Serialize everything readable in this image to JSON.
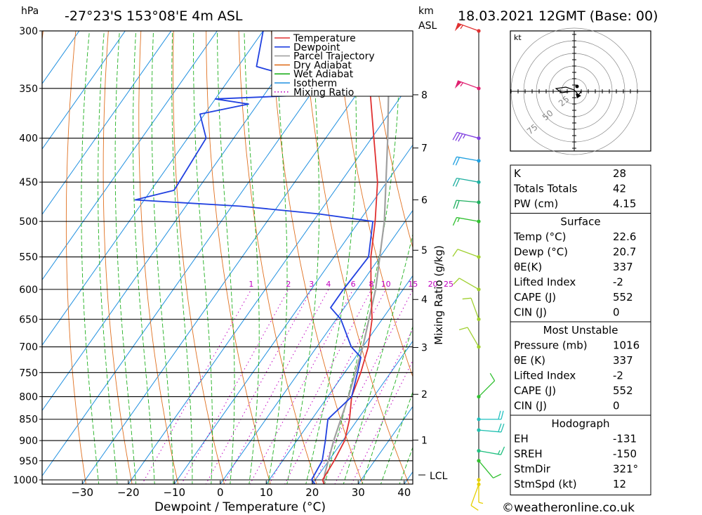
{
  "header": {
    "location": "-27°23'S  153°08'E  4m  ASL",
    "datetime": "18.03.2021  12GMT  (Base: 00)",
    "hpa_unit": "hPa",
    "km_label": "km",
    "asl_label": "ASL"
  },
  "legend": {
    "items": [
      {
        "label": "Temperature",
        "color": "#e03030",
        "style": "solid"
      },
      {
        "label": "Dewpoint",
        "color": "#2040e0",
        "style": "solid"
      },
      {
        "label": "Parcel Trajectory",
        "color": "#a0a0a0",
        "style": "solid"
      },
      {
        "label": "Dry Adiabat",
        "color": "#e07020",
        "style": "solid"
      },
      {
        "label": "Wet Adiabat",
        "color": "#20b020",
        "style": "solid"
      },
      {
        "label": "Isotherm",
        "color": "#2090e0",
        "style": "solid"
      },
      {
        "label": "Mixing Ratio",
        "color": "#c000c0",
        "style": "dotted"
      }
    ]
  },
  "chart_data": {
    "type": "skew-t",
    "x_label": "Dewpoint / Temperature (°C)",
    "x_ticks": [
      -30,
      -20,
      -10,
      0,
      10,
      20,
      30,
      40
    ],
    "pressure_ticks": [
      300,
      350,
      400,
      450,
      500,
      550,
      600,
      650,
      700,
      750,
      800,
      850,
      900,
      950,
      1000
    ],
    "height_km_ticks": [
      1,
      2,
      3,
      4,
      5,
      6,
      7,
      8
    ],
    "height_axis_label": "Mixing Ratio (g/kg)",
    "lcl_label": "LCL",
    "mixing_ratio_labels": [
      "1",
      "2",
      "3",
      "4",
      "6",
      "8",
      "10",
      "15",
      "20",
      "25"
    ],
    "temperature": [
      {
        "p": 1012,
        "t": 22.6
      },
      {
        "p": 1000,
        "t": 21.6
      },
      {
        "p": 950,
        "t": 21.2
      },
      {
        "p": 900,
        "t": 20.4
      },
      {
        "p": 850,
        "t": 18.2
      },
      {
        "p": 800,
        "t": 15.2
      },
      {
        "p": 750,
        "t": 13.5
      },
      {
        "p": 700,
        "t": 11.2
      },
      {
        "p": 650,
        "t": 7.8
      },
      {
        "p": 600,
        "t": 3.0
      },
      {
        "p": 550,
        "t": -2.0
      },
      {
        "p": 500,
        "t": -6.5
      },
      {
        "p": 450,
        "t": -12.0
      },
      {
        "p": 400,
        "t": -19.5
      },
      {
        "p": 350,
        "t": -28.0
      },
      {
        "p": 330,
        "t": -31.5
      },
      {
        "p": 300,
        "t": -37.0
      }
    ],
    "dewpoint": [
      {
        "p": 1012,
        "t": 20.7
      },
      {
        "p": 1000,
        "t": 19.2
      },
      {
        "p": 950,
        "t": 18.6
      },
      {
        "p": 900,
        "t": 16.2
      },
      {
        "p": 850,
        "t": 13.5
      },
      {
        "p": 800,
        "t": 15.2
      },
      {
        "p": 750,
        "t": 12.8
      },
      {
        "p": 720,
        "t": 11.2
      },
      {
        "p": 700,
        "t": 7.5
      },
      {
        "p": 650,
        "t": 1.0
      },
      {
        "p": 630,
        "t": -3.0
      },
      {
        "p": 600,
        "t": -3.0
      },
      {
        "p": 550,
        "t": -2.5
      },
      {
        "p": 500,
        "t": -7.0
      },
      {
        "p": 490,
        "t": -20.0
      },
      {
        "p": 480,
        "t": -38.0
      },
      {
        "p": 472,
        "t": -62.0
      },
      {
        "p": 460,
        "t": -55.0
      },
      {
        "p": 400,
        "t": -56.0
      },
      {
        "p": 375,
        "t": -61.0
      },
      {
        "p": 365,
        "t": -52.0
      },
      {
        "p": 360,
        "t": -60.0
      },
      {
        "p": 357,
        "t": -44.0
      },
      {
        "p": 342,
        "t": -44.0
      },
      {
        "p": 330,
        "t": -56.0
      },
      {
        "p": 300,
        "t": -60.0
      }
    ],
    "parcel": [
      {
        "p": 1012,
        "t": 22.6
      },
      {
        "p": 985,
        "t": 21.2
      },
      {
        "p": 900,
        "t": 18.0
      },
      {
        "p": 800,
        "t": 14.5
      },
      {
        "p": 700,
        "t": 10.0
      },
      {
        "p": 600,
        "t": 4.0
      },
      {
        "p": 500,
        "t": -4.5
      },
      {
        "p": 400,
        "t": -16.5
      },
      {
        "p": 300,
        "t": -32.5
      }
    ],
    "winds": [
      {
        "p": 1012,
        "dir": 200,
        "spd": 10,
        "color": "#e6d000"
      },
      {
        "p": 1000,
        "dir": 180,
        "spd": 5,
        "color": "#e6d000"
      },
      {
        "p": 950,
        "dir": 140,
        "spd": 10,
        "color": "#30c030"
      },
      {
        "p": 925,
        "dir": 100,
        "spd": 15,
        "color": "#20c080"
      },
      {
        "p": 875,
        "dir": 95,
        "spd": 20,
        "color": "#20c0b0"
      },
      {
        "p": 850,
        "dir": 90,
        "spd": 20,
        "color": "#20c0c0"
      },
      {
        "p": 800,
        "dir": 45,
        "spd": 10,
        "color": "#30c030"
      },
      {
        "p": 700,
        "dir": 330,
        "spd": 10,
        "color": "#a0d030"
      },
      {
        "p": 650,
        "dir": 340,
        "spd": 10,
        "color": "#a0d030"
      },
      {
        "p": 600,
        "dir": 300,
        "spd": 10,
        "color": "#a0d030"
      },
      {
        "p": 550,
        "dir": 290,
        "spd": 10,
        "color": "#a0d030"
      },
      {
        "p": 500,
        "dir": 280,
        "spd": 15,
        "color": "#30c030"
      },
      {
        "p": 475,
        "dir": 275,
        "spd": 20,
        "color": "#20b060"
      },
      {
        "p": 450,
        "dir": 280,
        "spd": 20,
        "color": "#20b0a0"
      },
      {
        "p": 425,
        "dir": 280,
        "spd": 20,
        "color": "#20a0e0"
      },
      {
        "p": 400,
        "dir": 285,
        "spd": 35,
        "color": "#8040e0"
      },
      {
        "p": 350,
        "dir": 290,
        "spd": 55,
        "color": "#e02070"
      },
      {
        "p": 300,
        "dir": 290,
        "spd": 55,
        "color": "#e03030"
      }
    ]
  },
  "hodograph": {
    "unit_label": "kt",
    "ring_labels": [
      "25",
      "50",
      "75"
    ]
  },
  "indices": [
    {
      "label": "K",
      "value": "28"
    },
    {
      "label": "Totals Totals",
      "value": "42"
    },
    {
      "label": "PW (cm)",
      "value": "4.15"
    }
  ],
  "surface": {
    "title": "Surface",
    "rows": [
      {
        "label": "Temp (°C)",
        "value": "22.6"
      },
      {
        "label": "Dewp (°C)",
        "value": "20.7"
      },
      {
        "label": "θE(K)",
        "value": "337"
      },
      {
        "label": "Lifted Index",
        "value": "-2"
      },
      {
        "label": "CAPE (J)",
        "value": "552"
      },
      {
        "label": "CIN (J)",
        "value": "0"
      }
    ]
  },
  "most_unstable": {
    "title": "Most Unstable",
    "rows": [
      {
        "label": "Pressure (mb)",
        "value": "1016"
      },
      {
        "label": "θE (K)",
        "value": "337"
      },
      {
        "label": "Lifted Index",
        "value": "-2"
      },
      {
        "label": "CAPE (J)",
        "value": "552"
      },
      {
        "label": "CIN (J)",
        "value": "0"
      }
    ]
  },
  "hodograph_table": {
    "title": "Hodograph",
    "rows": [
      {
        "label": "EH",
        "value": "-131"
      },
      {
        "label": "SREH",
        "value": "-150"
      },
      {
        "label": "StmDir",
        "value": "321°"
      },
      {
        "label": "StmSpd (kt)",
        "value": "12"
      }
    ]
  },
  "footer": {
    "copyright": "©weatheronline.co.uk"
  }
}
